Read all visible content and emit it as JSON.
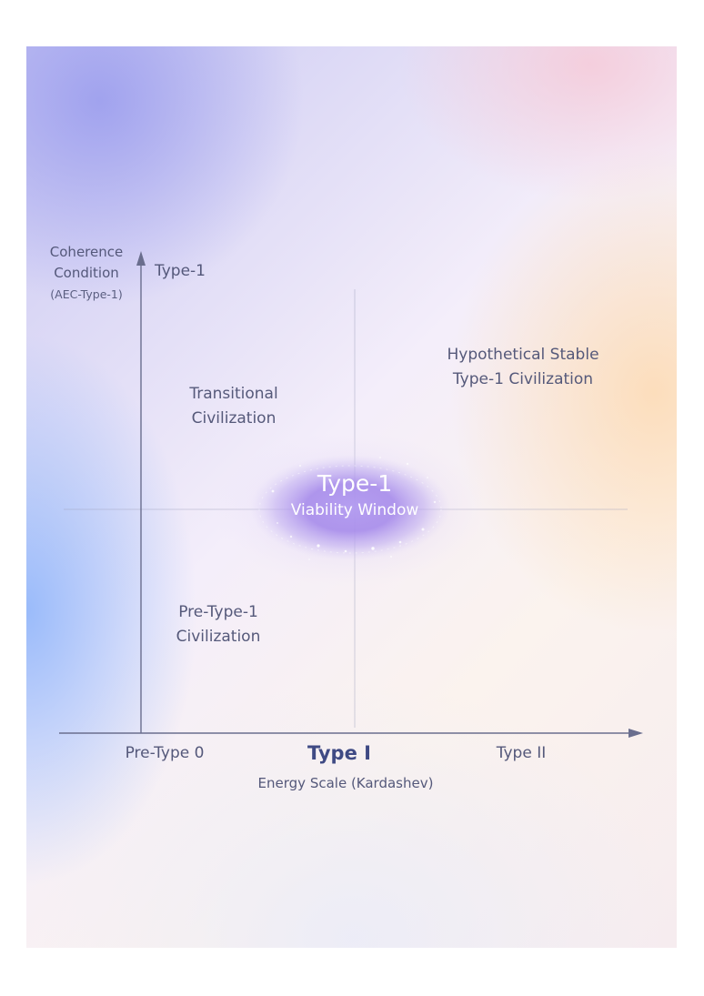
{
  "diagram": {
    "y_axis": {
      "title_line1": "Coherence",
      "title_line2": "Condition",
      "title_sub": "(AEC-Type-1)",
      "tick": "Type-1"
    },
    "x_axis": {
      "ticks": [
        "Pre-Type 0",
        "Type I",
        "Type II"
      ],
      "title": "Energy Scale (Kardashev)"
    },
    "quadrants": {
      "upper_left": [
        "Transitional",
        "Civilization"
      ],
      "upper_right": [
        "Hypothetical Stable",
        "Type-1 Civilization"
      ],
      "lower_left": [
        "Pre-Type-1",
        "Civilization"
      ]
    },
    "center_window": {
      "title": "Type-1",
      "subtitle": "Viability Window"
    },
    "colors": {
      "axis": "#6a6e8e",
      "text": "#54587a",
      "emphasis": "#3f4a84",
      "window_glow": "#9c7fe6"
    }
  }
}
